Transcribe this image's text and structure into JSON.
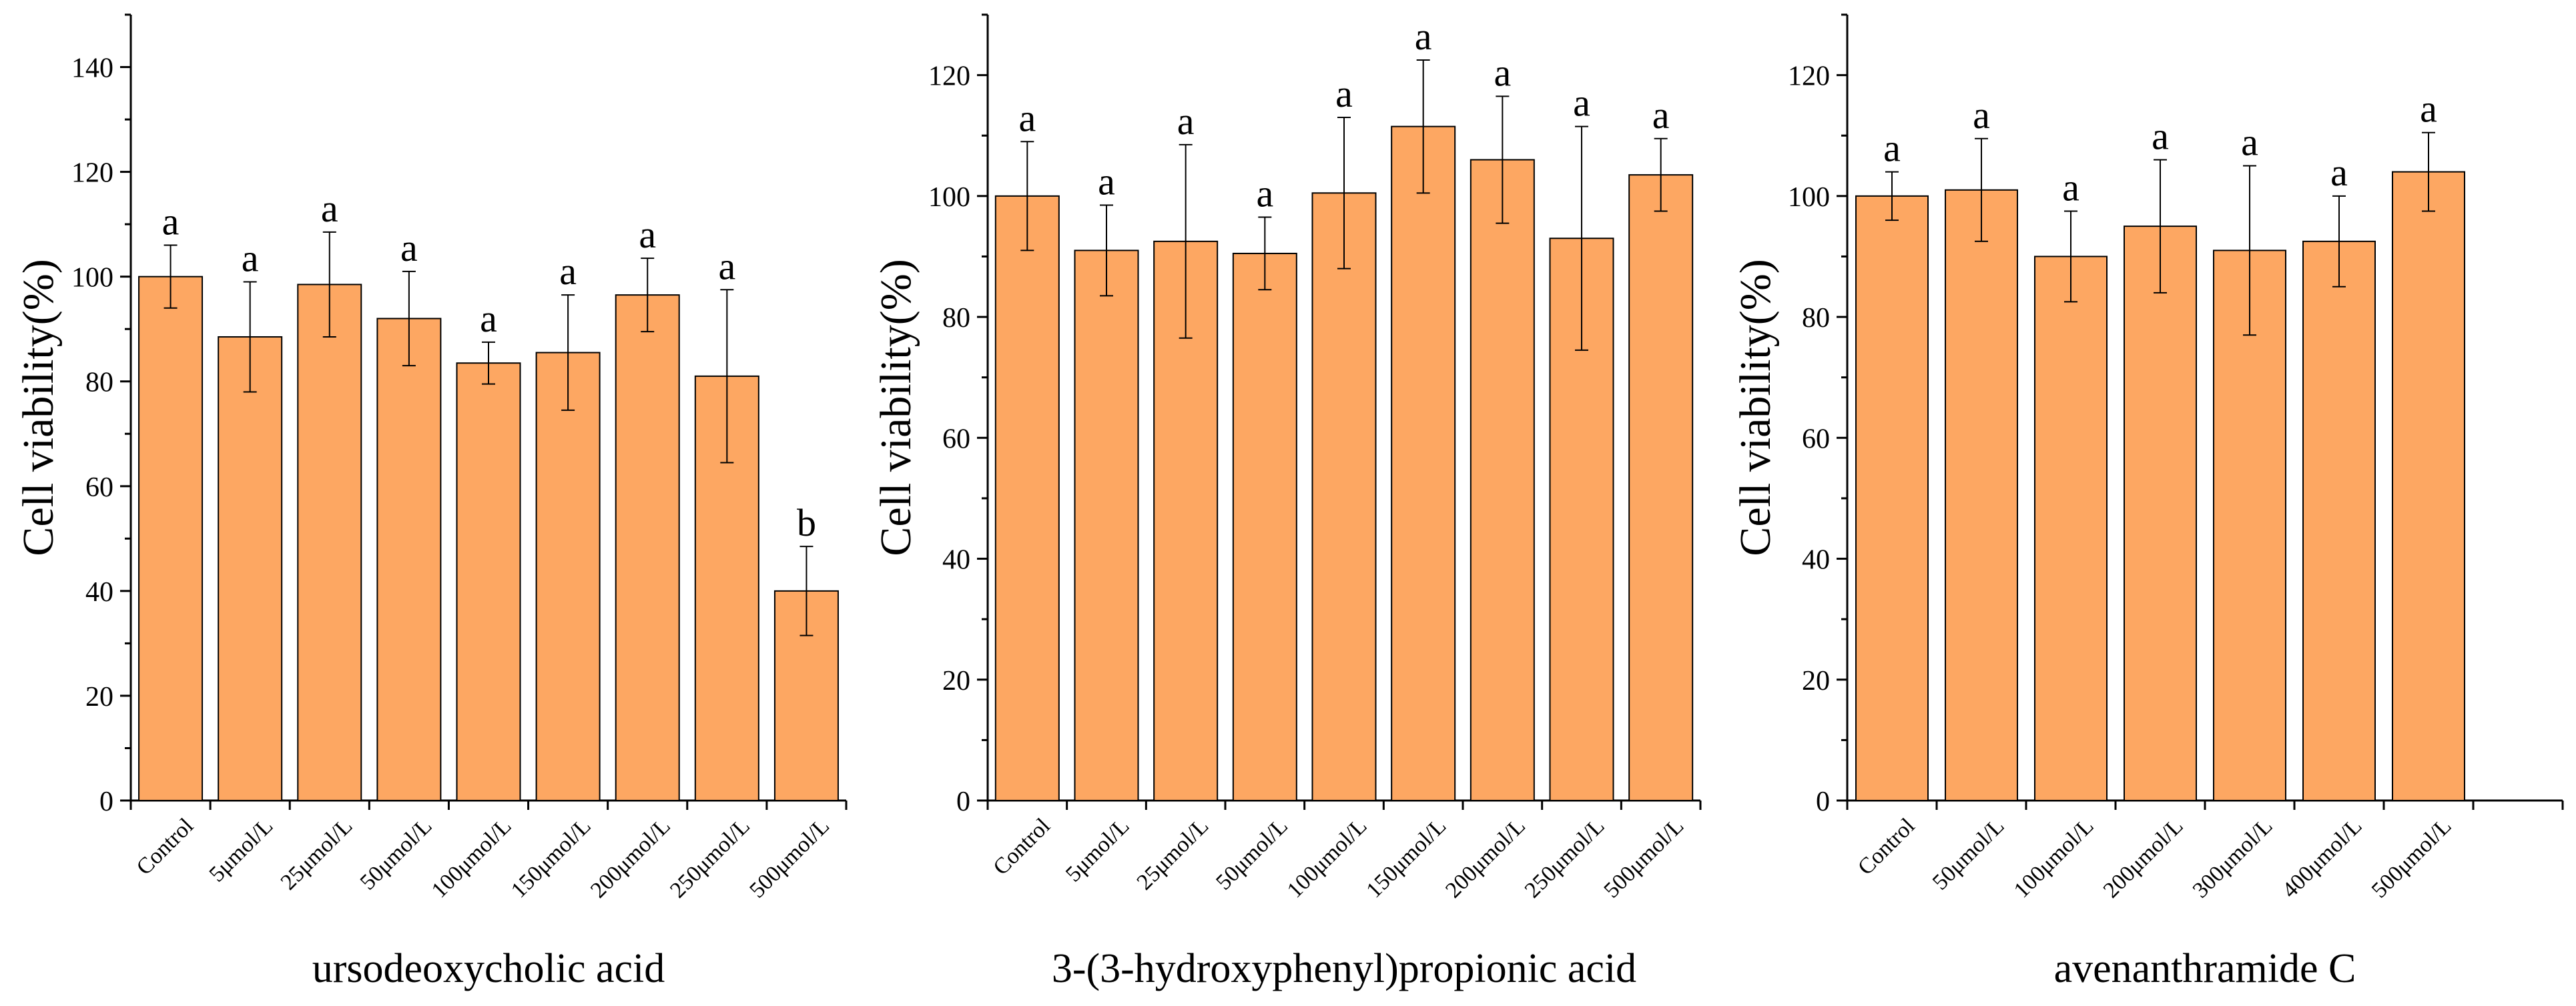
{
  "colors": {
    "bar_fill": "#FDA762",
    "bar_stroke": "#000000",
    "axis": "#000000"
  },
  "chart_data": [
    {
      "type": "bar",
      "title": "",
      "xlabel": "ursodeoxycholic acid",
      "ylabel": "Cell viability(%)",
      "ylim": [
        0,
        150
      ],
      "yticks": [
        "0",
        "20",
        "40",
        "60",
        "80",
        "100",
        "120",
        "140"
      ],
      "categories": [
        "Control",
        "5μmol/L",
        "25μmol/L",
        "50μmol/L",
        "100μmol/L",
        "150μmol/L",
        "200μmol/L",
        "250μmol/L",
        "500μmol/L"
      ],
      "values": [
        100,
        88.5,
        98.5,
        92,
        83.5,
        85.5,
        96.5,
        81,
        40
      ],
      "errors": [
        6,
        10.5,
        10,
        9,
        4,
        11,
        7,
        16.5,
        8.5
      ],
      "sig_labels": [
        "a",
        "a",
        "a",
        "a",
        "a",
        "a",
        "a",
        "a",
        "b"
      ]
    },
    {
      "type": "bar",
      "title": "",
      "xlabel": "3-(3-hydroxyphenyl)propionic acid",
      "ylabel": "Cell viability(%)",
      "ylim": [
        0,
        130
      ],
      "yticks": [
        "0",
        "20",
        "40",
        "60",
        "80",
        "100",
        "120"
      ],
      "categories": [
        "Control",
        "5μmol/L",
        "25μmol/L",
        "50μmol/L",
        "100μmol/L",
        "150μmol/L",
        "200μmol/L",
        "250μmol/L",
        "500μmol/L"
      ],
      "values": [
        100,
        91,
        92.5,
        90.5,
        100.5,
        111.5,
        106,
        93,
        103.5
      ],
      "errors": [
        9,
        7.5,
        16,
        6,
        12.5,
        11,
        10.5,
        18.5,
        6
      ],
      "sig_labels": [
        "a",
        "a",
        "a",
        "a",
        "a",
        "a",
        "a",
        "a",
        "a"
      ]
    },
    {
      "type": "bar",
      "title": "",
      "xlabel": "avenanthramide C",
      "ylabel": "Cell viability(%)",
      "ylim": [
        0,
        130
      ],
      "yticks": [
        "0",
        "20",
        "40",
        "60",
        "80",
        "100",
        "120"
      ],
      "categories": [
        "Control",
        "50μmol/L",
        "100μmol/L",
        "200μmol/L",
        "300μmol/L",
        "400μmol/L",
        "500μmol/L"
      ],
      "values": [
        100,
        101,
        90,
        95,
        91,
        92.5,
        104
      ],
      "errors": [
        4,
        8.5,
        7.5,
        11,
        14,
        7.5,
        6.5
      ],
      "sig_labels": [
        "a",
        "a",
        "a",
        "a",
        "a",
        "a",
        "a"
      ]
    }
  ]
}
